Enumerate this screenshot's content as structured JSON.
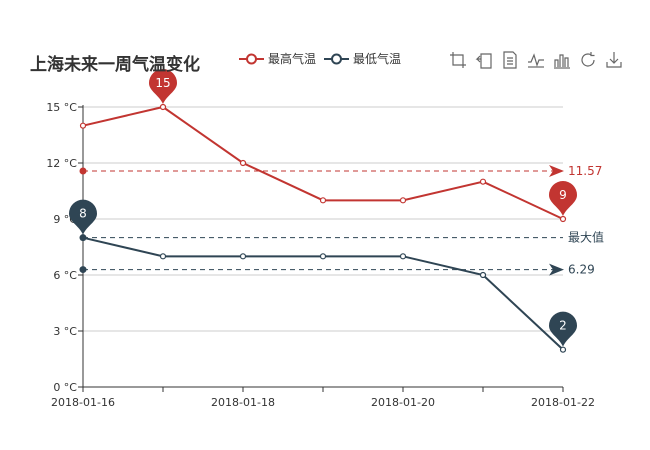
{
  "title": "上海未来一周气温变化",
  "legend": [
    {
      "label": "最高气温",
      "color": "#c23531"
    },
    {
      "label": "最低气温",
      "color": "#2f4554"
    }
  ],
  "toolbox": [
    "zoom-icon",
    "zoom-reset-icon",
    "data-view-icon",
    "line-chart-icon",
    "bar-chart-icon",
    "restore-icon",
    "save-image-icon"
  ],
  "chart_data": {
    "type": "line",
    "x": [
      "2018-01-16",
      "2018-01-17",
      "2018-01-18",
      "2018-01-19",
      "2018-01-20",
      "2018-01-21",
      "2018-01-22"
    ],
    "x_tick_labels": [
      "2018-01-16",
      "2018-01-18",
      "2018-01-20",
      "2018-01-22"
    ],
    "y_ticks": [
      0,
      3,
      6,
      9,
      12,
      15
    ],
    "y_unit": "°C",
    "ylim": [
      0,
      15
    ],
    "grid": "horizontal",
    "legend_position": "top",
    "series": [
      {
        "name": "最高气温",
        "color": "#c23531",
        "values": [
          14,
          15,
          12,
          10,
          10,
          11,
          9
        ],
        "mark_points": [
          {
            "label": "15",
            "x": "2018-01-17",
            "value": 15
          },
          {
            "label": "9",
            "x": "2018-01-22",
            "value": 9
          }
        ],
        "average_line": {
          "value": 11.57,
          "label": "11.57"
        }
      },
      {
        "name": "最低气温",
        "color": "#2f4554",
        "values": [
          8,
          7,
          7,
          7,
          7,
          6,
          2
        ],
        "mark_points": [
          {
            "label": "8",
            "x": "2018-01-16",
            "value": 8
          },
          {
            "label": "2",
            "x": "2018-01-22",
            "value": 2
          }
        ],
        "average_line": {
          "value": 6.29,
          "label": "6.29"
        },
        "max_line": {
          "value": 8,
          "label": "最大值"
        }
      }
    ]
  }
}
